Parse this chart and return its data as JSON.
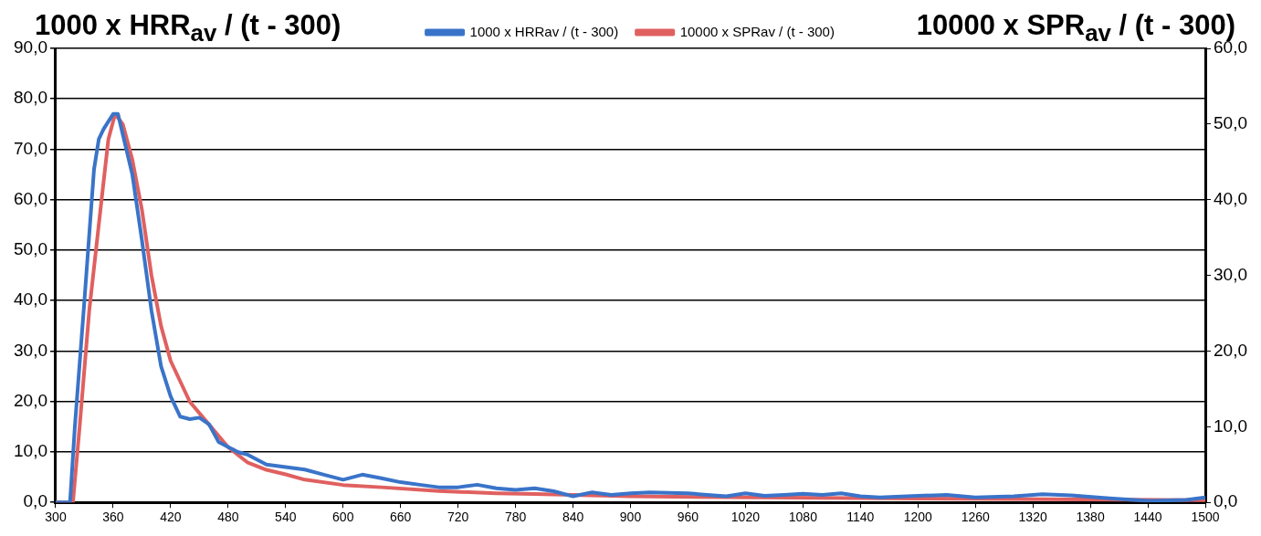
{
  "chart_data": {
    "type": "line",
    "ylabel": "1000 x HRR$_{av}$ / (t - 300)",
    "y2label": "10000 x SPR$_{av}$ / (t - 300)",
    "xlim": [
      300,
      1500
    ],
    "xticks": [
      300,
      360,
      420,
      480,
      540,
      600,
      660,
      720,
      780,
      840,
      900,
      960,
      1020,
      1080,
      1140,
      1200,
      1260,
      1320,
      1380,
      1440,
      1500
    ],
    "ylim": [
      0,
      90
    ],
    "yticks": [
      {
        "value": 0,
        "label": "0,0"
      },
      {
        "value": 10,
        "label": "10,0"
      },
      {
        "value": 20,
        "label": "20,0"
      },
      {
        "value": 30,
        "label": "30,0"
      },
      {
        "value": 40,
        "label": "40,0"
      },
      {
        "value": 50,
        "label": "50,0"
      },
      {
        "value": 60,
        "label": "60,0"
      },
      {
        "value": 70,
        "label": "70,0"
      },
      {
        "value": 80,
        "label": "80,0"
      },
      {
        "value": 90,
        "label": "90,0"
      }
    ],
    "y2lim": [
      0,
      60
    ],
    "y2ticks": [
      {
        "value": 0,
        "label": "0,0"
      },
      {
        "value": 10,
        "label": "10,0"
      },
      {
        "value": 20,
        "label": "20,0"
      },
      {
        "value": 30,
        "label": "30,0"
      },
      {
        "value": 40,
        "label": "40,0"
      },
      {
        "value": 50,
        "label": "50,0"
      },
      {
        "value": 60,
        "label": "60,0"
      }
    ],
    "grid": "y",
    "legend": "top",
    "marker": "none",
    "line_style": "solid",
    "series": [
      {
        "name": "1000 x HRRav / (t - 300)",
        "color": "#3a74c9",
        "x": [
          300,
          315,
          320,
          330,
          340,
          345,
          350,
          360,
          365,
          370,
          380,
          390,
          400,
          410,
          420,
          430,
          440,
          450,
          460,
          470,
          480,
          490,
          500,
          510,
          520,
          540,
          560,
          580,
          600,
          620,
          640,
          660,
          680,
          700,
          720,
          740,
          760,
          780,
          800,
          820,
          840,
          860,
          880,
          900,
          920,
          960,
          980,
          1000,
          1020,
          1040,
          1060,
          1080,
          1100,
          1120,
          1140,
          1160,
          1200,
          1230,
          1260,
          1300,
          1330,
          1360,
          1400,
          1440,
          1480,
          1500
        ],
        "values": [
          0,
          0,
          15,
          40,
          66,
          72,
          74,
          77,
          77,
          73,
          65,
          52,
          38,
          27,
          21,
          17,
          16.5,
          16.8,
          15.5,
          12,
          11,
          10,
          9.5,
          8.5,
          7.5,
          7,
          6.5,
          5.5,
          4.5,
          5.5,
          4.8,
          4,
          3.5,
          3,
          3,
          3.5,
          2.8,
          2.5,
          2.8,
          2.2,
          1.2,
          2,
          1.5,
          1.8,
          2,
          1.8,
          1.5,
          1.2,
          1.8,
          1.3,
          1.5,
          1.7,
          1.5,
          1.8,
          1.2,
          1,
          1.3,
          1.5,
          1,
          1.2,
          1.6,
          1.4,
          0.8,
          0.3,
          0.5,
          1
        ]
      },
      {
        "name": "10000 x SPRav / (t - 300)",
        "color": "#e06060",
        "axis": "y2",
        "x": [
          300,
          318,
          325,
          335,
          345,
          355,
          362,
          370,
          380,
          390,
          400,
          410,
          420,
          440,
          460,
          480,
          500,
          520,
          540,
          560,
          600,
          640,
          700,
          760,
          800,
          900,
          1000,
          1200,
          1500
        ],
        "values": [
          0,
          0,
          10,
          25.3,
          36.7,
          48,
          51.3,
          50,
          45.3,
          38.7,
          30,
          23.3,
          18.7,
          13.3,
          10.3,
          7.3,
          5.3,
          4.3,
          3.7,
          3,
          2.3,
          2,
          1.5,
          1.2,
          1.1,
          0.8,
          0.7,
          0.5,
          0.3
        ]
      }
    ]
  }
}
